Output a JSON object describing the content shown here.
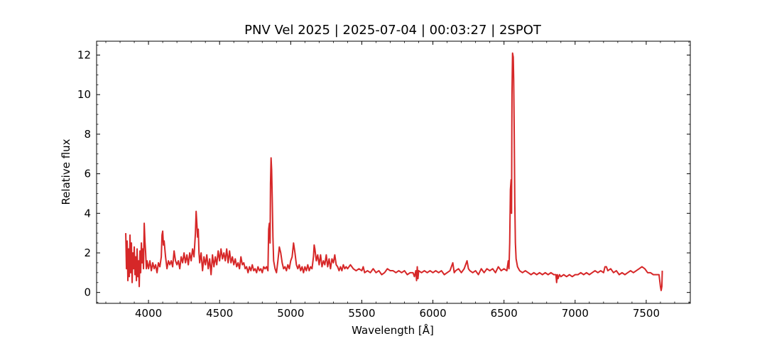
{
  "chart_data": {
    "type": "line",
    "title": "PNV Vel 2025 | 2025-07-04 | 00:03:27 | 2SPOT",
    "xlabel": "Wavelength [Å]",
    "ylabel": "Relative flux",
    "xlim": [
      3635,
      7810
    ],
    "ylim": [
      -0.55,
      12.7
    ],
    "x_ticks": [
      4000,
      4500,
      5000,
      5500,
      6000,
      6500,
      7000,
      7500
    ],
    "x_tick_labels": [
      "4000",
      "4500",
      "5000",
      "5500",
      "6000",
      "6500",
      "7000",
      "7500"
    ],
    "y_ticks": [
      0,
      2,
      4,
      6,
      8,
      10,
      12
    ],
    "y_tick_labels": [
      "0",
      "2",
      "4",
      "6",
      "8",
      "10",
      "12"
    ],
    "grid": false,
    "series": [
      {
        "color": "#d62728",
        "points": [
          [
            3840,
            3.0
          ],
          [
            3845,
            1.2
          ],
          [
            3850,
            2.6
          ],
          [
            3855,
            0.6
          ],
          [
            3860,
            2.2
          ],
          [
            3865,
            0.8
          ],
          [
            3870,
            2.9
          ],
          [
            3875,
            1.0
          ],
          [
            3880,
            2.5
          ],
          [
            3885,
            0.5
          ],
          [
            3890,
            2.0
          ],
          [
            3895,
            1.2
          ],
          [
            3900,
            2.3
          ],
          [
            3905,
            0.9
          ],
          [
            3910,
            1.8
          ],
          [
            3915,
            0.6
          ],
          [
            3920,
            2.2
          ],
          [
            3925,
            0.8
          ],
          [
            3930,
            1.6
          ],
          [
            3935,
            0.3
          ],
          [
            3940,
            2.1
          ],
          [
            3945,
            1.0
          ],
          [
            3950,
            2.5
          ],
          [
            3955,
            1.5
          ],
          [
            3960,
            2.2
          ],
          [
            3965,
            1.2
          ],
          [
            3970,
            3.5
          ],
          [
            3975,
            2.6
          ],
          [
            3980,
            2.0
          ],
          [
            3985,
            1.2
          ],
          [
            3990,
            1.6
          ],
          [
            4000,
            1.2
          ],
          [
            4010,
            1.6
          ],
          [
            4020,
            1.1
          ],
          [
            4030,
            1.5
          ],
          [
            4040,
            1.2
          ],
          [
            4050,
            1.4
          ],
          [
            4060,
            1.0
          ],
          [
            4070,
            1.5
          ],
          [
            4080,
            1.3
          ],
          [
            4090,
            1.8
          ],
          [
            4095,
            2.9
          ],
          [
            4100,
            3.1
          ],
          [
            4105,
            2.4
          ],
          [
            4110,
            2.6
          ],
          [
            4120,
            1.8
          ],
          [
            4130,
            1.2
          ],
          [
            4140,
            1.6
          ],
          [
            4150,
            1.4
          ],
          [
            4160,
            1.6
          ],
          [
            4170,
            1.3
          ],
          [
            4180,
            2.1
          ],
          [
            4190,
            1.6
          ],
          [
            4200,
            1.4
          ],
          [
            4210,
            1.6
          ],
          [
            4220,
            1.2
          ],
          [
            4230,
            1.8
          ],
          [
            4240,
            1.5
          ],
          [
            4250,
            2.0
          ],
          [
            4260,
            1.5
          ],
          [
            4270,
            1.9
          ],
          [
            4280,
            1.4
          ],
          [
            4290,
            2.0
          ],
          [
            4300,
            1.6
          ],
          [
            4310,
            2.2
          ],
          [
            4320,
            1.8
          ],
          [
            4330,
            3.0
          ],
          [
            4335,
            4.1
          ],
          [
            4340,
            3.5
          ],
          [
            4345,
            2.8
          ],
          [
            4350,
            3.2
          ],
          [
            4355,
            2.0
          ],
          [
            4360,
            1.5
          ],
          [
            4370,
            2.0
          ],
          [
            4380,
            1.1
          ],
          [
            4390,
            1.8
          ],
          [
            4400,
            1.4
          ],
          [
            4410,
            1.9
          ],
          [
            4420,
            1.2
          ],
          [
            4430,
            1.7
          ],
          [
            4440,
            0.9
          ],
          [
            4450,
            1.9
          ],
          [
            4460,
            1.3
          ],
          [
            4470,
            1.8
          ],
          [
            4480,
            1.4
          ],
          [
            4490,
            2.1
          ],
          [
            4500,
            1.6
          ],
          [
            4510,
            2.2
          ],
          [
            4520,
            1.7
          ],
          [
            4530,
            2.0
          ],
          [
            4540,
            1.6
          ],
          [
            4550,
            2.2
          ],
          [
            4560,
            1.5
          ],
          [
            4570,
            2.1
          ],
          [
            4580,
            1.5
          ],
          [
            4590,
            1.8
          ],
          [
            4600,
            1.4
          ],
          [
            4610,
            1.7
          ],
          [
            4620,
            1.3
          ],
          [
            4630,
            1.5
          ],
          [
            4640,
            1.2
          ],
          [
            4650,
            1.8
          ],
          [
            4660,
            1.4
          ],
          [
            4670,
            1.5
          ],
          [
            4680,
            1.2
          ],
          [
            4690,
            1.3
          ],
          [
            4700,
            1.0
          ],
          [
            4710,
            1.3
          ],
          [
            4720,
            1.1
          ],
          [
            4730,
            1.4
          ],
          [
            4740,
            1.1
          ],
          [
            4750,
            1.2
          ],
          [
            4760,
            1.0
          ],
          [
            4770,
            1.3
          ],
          [
            4780,
            1.1
          ],
          [
            4790,
            1.2
          ],
          [
            4800,
            1.0
          ],
          [
            4810,
            1.3
          ],
          [
            4820,
            1.2
          ],
          [
            4830,
            1.3
          ],
          [
            4840,
            1.1
          ],
          [
            4845,
            3.2
          ],
          [
            4850,
            3.5
          ],
          [
            4855,
            2.5
          ],
          [
            4858,
            5.5
          ],
          [
            4862,
            6.8
          ],
          [
            4866,
            6.2
          ],
          [
            4870,
            4.8
          ],
          [
            4875,
            2.8
          ],
          [
            4880,
            1.6
          ],
          [
            4890,
            1.2
          ],
          [
            4900,
            1.0
          ],
          [
            4910,
            1.6
          ],
          [
            4920,
            2.3
          ],
          [
            4930,
            2.0
          ],
          [
            4940,
            1.5
          ],
          [
            4950,
            1.2
          ],
          [
            4960,
            1.3
          ],
          [
            4970,
            1.1
          ],
          [
            4980,
            1.4
          ],
          [
            4990,
            1.2
          ],
          [
            5000,
            1.6
          ],
          [
            5010,
            1.8
          ],
          [
            5020,
            2.5
          ],
          [
            5030,
            2.0
          ],
          [
            5040,
            1.4
          ],
          [
            5050,
            1.2
          ],
          [
            5060,
            1.4
          ],
          [
            5070,
            1.1
          ],
          [
            5080,
            1.3
          ],
          [
            5090,
            1.0
          ],
          [
            5100,
            1.3
          ],
          [
            5110,
            1.1
          ],
          [
            5120,
            1.4
          ],
          [
            5130,
            1.1
          ],
          [
            5140,
            1.3
          ],
          [
            5150,
            1.2
          ],
          [
            5160,
            1.8
          ],
          [
            5165,
            2.4
          ],
          [
            5170,
            2.2
          ],
          [
            5180,
            1.6
          ],
          [
            5190,
            1.9
          ],
          [
            5200,
            1.4
          ],
          [
            5210,
            1.9
          ],
          [
            5220,
            1.3
          ],
          [
            5230,
            1.6
          ],
          [
            5240,
            1.4
          ],
          [
            5250,
            1.9
          ],
          [
            5260,
            1.3
          ],
          [
            5270,
            1.7
          ],
          [
            5280,
            1.2
          ],
          [
            5290,
            1.7
          ],
          [
            5300,
            1.5
          ],
          [
            5310,
            1.9
          ],
          [
            5320,
            1.4
          ],
          [
            5330,
            1.3
          ],
          [
            5340,
            1.1
          ],
          [
            5350,
            1.3
          ],
          [
            5360,
            1.1
          ],
          [
            5370,
            1.4
          ],
          [
            5380,
            1.2
          ],
          [
            5390,
            1.3
          ],
          [
            5400,
            1.2
          ],
          [
            5420,
            1.4
          ],
          [
            5440,
            1.2
          ],
          [
            5460,
            1.1
          ],
          [
            5480,
            1.2
          ],
          [
            5500,
            1.1
          ],
          [
            5510,
            1.3
          ],
          [
            5520,
            1.0
          ],
          [
            5540,
            1.1
          ],
          [
            5560,
            1.0
          ],
          [
            5580,
            1.2
          ],
          [
            5600,
            1.0
          ],
          [
            5620,
            1.1
          ],
          [
            5640,
            0.9
          ],
          [
            5660,
            1.0
          ],
          [
            5680,
            1.2
          ],
          [
            5700,
            1.1
          ],
          [
            5720,
            1.1
          ],
          [
            5740,
            1.0
          ],
          [
            5760,
            1.1
          ],
          [
            5780,
            1.0
          ],
          [
            5800,
            1.1
          ],
          [
            5820,
            0.9
          ],
          [
            5840,
            1.0
          ],
          [
            5860,
            1.0
          ],
          [
            5870,
            0.8
          ],
          [
            5880,
            1.1
          ],
          [
            5885,
            0.6
          ],
          [
            5890,
            1.3
          ],
          [
            5895,
            0.7
          ],
          [
            5900,
            1.1
          ],
          [
            5920,
            1.0
          ],
          [
            5940,
            1.1
          ],
          [
            5960,
            1.0
          ],
          [
            5980,
            1.1
          ],
          [
            6000,
            1.0
          ],
          [
            6020,
            1.1
          ],
          [
            6040,
            1.0
          ],
          [
            6060,
            1.1
          ],
          [
            6080,
            0.9
          ],
          [
            6100,
            1.0
          ],
          [
            6120,
            1.1
          ],
          [
            6140,
            1.5
          ],
          [
            6150,
            1.0
          ],
          [
            6160,
            1.1
          ],
          [
            6180,
            1.2
          ],
          [
            6200,
            1.0
          ],
          [
            6220,
            1.2
          ],
          [
            6240,
            1.6
          ],
          [
            6250,
            1.2
          ],
          [
            6260,
            1.1
          ],
          [
            6280,
            1.0
          ],
          [
            6300,
            1.1
          ],
          [
            6320,
            0.9
          ],
          [
            6340,
            1.2
          ],
          [
            6360,
            1.0
          ],
          [
            6380,
            1.2
          ],
          [
            6400,
            1.1
          ],
          [
            6420,
            1.2
          ],
          [
            6440,
            1.0
          ],
          [
            6460,
            1.3
          ],
          [
            6480,
            1.1
          ],
          [
            6500,
            1.2
          ],
          [
            6520,
            1.1
          ],
          [
            6530,
            1.6
          ],
          [
            6535,
            1.2
          ],
          [
            6540,
            2.5
          ],
          [
            6545,
            5.2
          ],
          [
            6550,
            5.7
          ],
          [
            6553,
            4.0
          ],
          [
            6556,
            10.0
          ],
          [
            6560,
            12.1
          ],
          [
            6565,
            11.9
          ],
          [
            6568,
            10.8
          ],
          [
            6572,
            8.0
          ],
          [
            6576,
            4.5
          ],
          [
            6580,
            2.5
          ],
          [
            6585,
            1.7
          ],
          [
            6595,
            1.3
          ],
          [
            6610,
            1.1
          ],
          [
            6630,
            1.0
          ],
          [
            6650,
            1.1
          ],
          [
            6670,
            1.0
          ],
          [
            6690,
            0.9
          ],
          [
            6710,
            1.0
          ],
          [
            6730,
            0.9
          ],
          [
            6750,
            1.0
          ],
          [
            6770,
            0.9
          ],
          [
            6790,
            1.0
          ],
          [
            6810,
            0.9
          ],
          [
            6830,
            1.0
          ],
          [
            6850,
            0.9
          ],
          [
            6865,
            0.9
          ],
          [
            6870,
            0.5
          ],
          [
            6875,
            0.9
          ],
          [
            6880,
            0.7
          ],
          [
            6890,
            0.9
          ],
          [
            6900,
            0.8
          ],
          [
            6920,
            0.9
          ],
          [
            6940,
            0.8
          ],
          [
            6960,
            0.9
          ],
          [
            6980,
            0.8
          ],
          [
            7000,
            0.9
          ],
          [
            7020,
            0.9
          ],
          [
            7040,
            1.0
          ],
          [
            7060,
            0.9
          ],
          [
            7080,
            1.0
          ],
          [
            7100,
            0.9
          ],
          [
            7120,
            1.0
          ],
          [
            7140,
            1.1
          ],
          [
            7160,
            1.0
          ],
          [
            7180,
            1.1
          ],
          [
            7200,
            1.0
          ],
          [
            7210,
            1.3
          ],
          [
            7220,
            1.3
          ],
          [
            7230,
            1.1
          ],
          [
            7250,
            1.2
          ],
          [
            7270,
            1.0
          ],
          [
            7290,
            1.1
          ],
          [
            7310,
            0.9
          ],
          [
            7330,
            1.0
          ],
          [
            7350,
            0.9
          ],
          [
            7370,
            1.0
          ],
          [
            7390,
            1.1
          ],
          [
            7410,
            1.0
          ],
          [
            7430,
            1.1
          ],
          [
            7450,
            1.2
          ],
          [
            7470,
            1.3
          ],
          [
            7490,
            1.2
          ],
          [
            7510,
            1.0
          ],
          [
            7530,
            1.0
          ],
          [
            7550,
            0.9
          ],
          [
            7570,
            0.9
          ],
          [
            7590,
            0.9
          ],
          [
            7600,
            0.3
          ],
          [
            7605,
            0.1
          ],
          [
            7610,
            0.3
          ],
          [
            7613,
            1.1
          ]
        ]
      }
    ]
  }
}
